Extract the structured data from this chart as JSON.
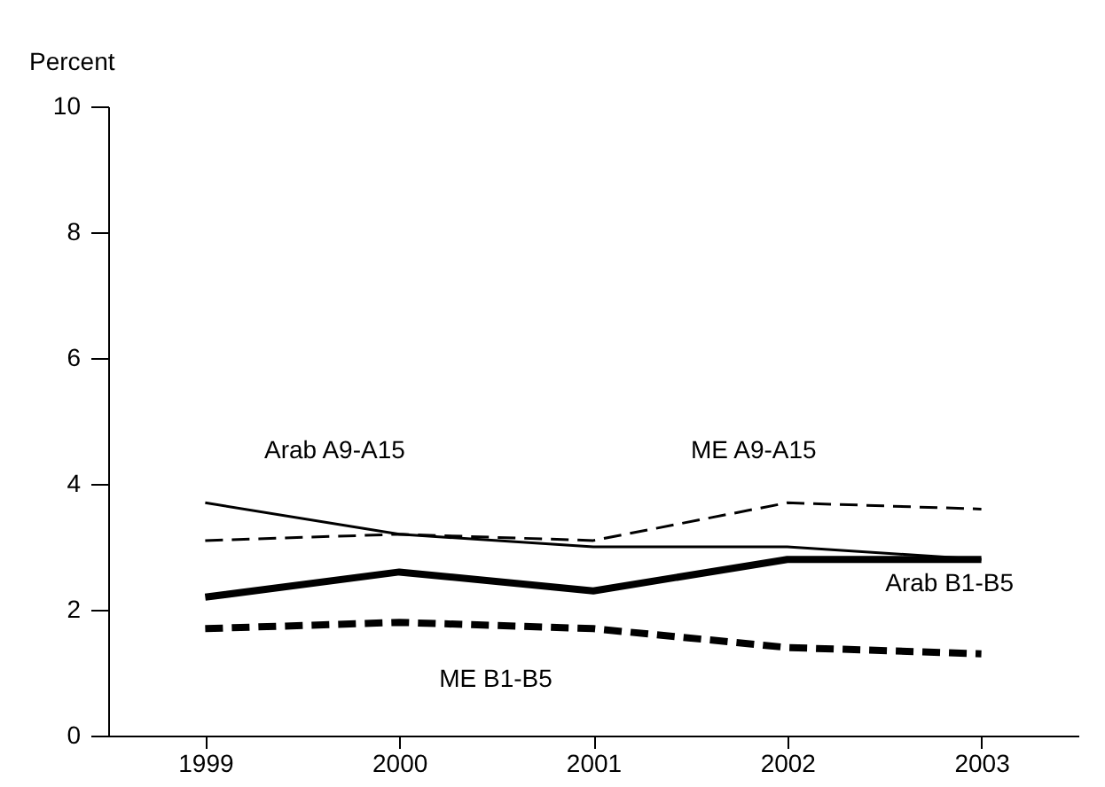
{
  "chart_data": {
    "type": "line",
    "ylabel": "Percent",
    "categories": [
      "1999",
      "2000",
      "2001",
      "2002",
      "2003"
    ],
    "ylim": [
      0,
      10
    ],
    "yticks": [
      0,
      2,
      4,
      6,
      8,
      10
    ],
    "grid": false,
    "series": [
      {
        "name": "Arab A9-A15",
        "color": "#000000",
        "line_style": "solid",
        "values": [
          3.7,
          3.2,
          3.0,
          3.0,
          2.8
        ]
      },
      {
        "name": "ME A9-A15",
        "color": "#000000",
        "line_style": "dashed",
        "values": [
          3.1,
          3.2,
          3.1,
          3.7,
          3.6
        ]
      },
      {
        "name": "Arab B1-B5",
        "color": "#000000",
        "line_style": "solid",
        "values": [
          2.2,
          2.6,
          2.3,
          2.8,
          2.8
        ]
      },
      {
        "name": "ME B1-B5",
        "color": "#000000",
        "line_style": "dashed",
        "values": [
          1.7,
          1.8,
          1.7,
          1.4,
          1.3
        ]
      }
    ]
  }
}
